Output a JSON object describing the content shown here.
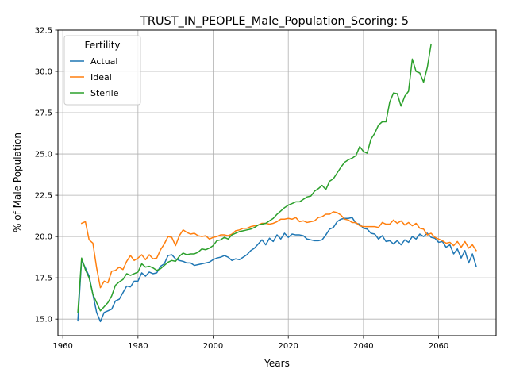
{
  "chart_data": {
    "type": "line",
    "title": "TRUST_IN_PEOPLE_Male_Population_Scoring: 5",
    "xlabel": "Years",
    "ylabel": "% of Male Population",
    "xlim": [
      1958.7,
      2075.3
    ],
    "ylim": [
      14.0,
      32.5
    ],
    "x_ticks": [
      1960,
      1980,
      2000,
      2020,
      2040,
      2060
    ],
    "x_tick_labels": [
      "1960",
      "1980",
      "2000",
      "2020",
      "2040",
      "2060"
    ],
    "y_ticks": [
      15.0,
      17.5,
      20.0,
      22.5,
      25.0,
      27.5,
      30.0,
      32.5
    ],
    "y_tick_labels": [
      "15.0",
      "17.5",
      "20.0",
      "22.5",
      "25.0",
      "27.5",
      "30.0",
      "32.5"
    ],
    "grid": true,
    "legend": {
      "title": "Fertility",
      "placement": "upper-left"
    },
    "series": [
      {
        "name": "Actual",
        "color": "#1f77b4",
        "x": [
          1964,
          1965,
          1966,
          1967,
          1968,
          1969,
          1970,
          1971,
          1972,
          1973,
          1974,
          1975,
          1976,
          1977,
          1978,
          1979,
          1980,
          1981,
          1982,
          1983,
          1984,
          1985,
          1986,
          1987,
          1988,
          1989,
          1990,
          1991,
          1992,
          1993,
          1994,
          1995,
          1996,
          1997,
          1998,
          1999,
          2000,
          2001,
          2002,
          2003,
          2004,
          2005,
          2006,
          2007,
          2008,
          2009,
          2010,
          2011,
          2012,
          2013,
          2014,
          2015,
          2016,
          2017,
          2018,
          2019,
          2020,
          2021,
          2022,
          2023,
          2024,
          2025,
          2026,
          2027,
          2028,
          2029,
          2030,
          2031,
          2032,
          2033,
          2034,
          2035,
          2036,
          2037,
          2038,
          2039,
          2040,
          2041,
          2042,
          2043,
          2044,
          2045,
          2046,
          2047,
          2048,
          2049,
          2050,
          2051,
          2052,
          2053,
          2054,
          2055,
          2056,
          2057,
          2058,
          2059,
          2060,
          2061,
          2062,
          2063,
          2064,
          2065,
          2066,
          2067,
          2068,
          2069,
          2070
        ],
        "values": [
          14.9,
          18.6,
          18.1,
          17.6,
          16.5,
          15.4,
          14.85,
          15.4,
          15.5,
          15.6,
          16.1,
          16.2,
          16.6,
          17.0,
          16.95,
          17.3,
          17.3,
          17.8,
          17.6,
          17.85,
          17.75,
          17.8,
          18.2,
          18.35,
          18.85,
          18.9,
          18.65,
          18.55,
          18.5,
          18.4,
          18.4,
          18.25,
          18.3,
          18.35,
          18.4,
          18.45,
          18.6,
          18.7,
          18.75,
          18.85,
          18.75,
          18.55,
          18.65,
          18.6,
          18.75,
          18.9,
          19.15,
          19.3,
          19.55,
          19.8,
          19.5,
          19.9,
          19.7,
          20.1,
          19.85,
          20.2,
          19.95,
          20.15,
          20.1,
          20.1,
          20.05,
          19.85,
          19.8,
          19.75,
          19.75,
          19.8,
          20.1,
          20.45,
          20.55,
          20.9,
          21.05,
          21.1,
          21.1,
          21.15,
          20.8,
          20.75,
          20.5,
          20.45,
          20.2,
          20.15,
          19.85,
          20.05,
          19.7,
          19.75,
          19.55,
          19.75,
          19.5,
          19.8,
          19.65,
          20.0,
          19.85,
          20.15,
          20.0,
          20.2,
          19.95,
          19.9,
          19.65,
          19.7,
          19.35,
          19.5,
          18.95,
          19.25,
          18.7,
          19.15,
          18.4,
          18.95,
          18.2
        ]
      },
      {
        "name": "Ideal",
        "color": "#ff7f0e",
        "x": [
          1965,
          1966,
          1967,
          1968,
          1969,
          1970,
          1971,
          1972,
          1973,
          1974,
          1975,
          1976,
          1977,
          1978,
          1979,
          1980,
          1981,
          1982,
          1983,
          1984,
          1985,
          1986,
          1987,
          1988,
          1989,
          1990,
          1991,
          1992,
          1993,
          1994,
          1995,
          1996,
          1997,
          1998,
          1999,
          2000,
          2001,
          2002,
          2003,
          2004,
          2005,
          2006,
          2007,
          2008,
          2009,
          2010,
          2011,
          2012,
          2013,
          2014,
          2015,
          2016,
          2017,
          2018,
          2019,
          2020,
          2021,
          2022,
          2023,
          2024,
          2025,
          2026,
          2027,
          2028,
          2029,
          2030,
          2031,
          2032,
          2033,
          2034,
          2035,
          2036,
          2037,
          2038,
          2039,
          2040,
          2041,
          2042,
          2043,
          2044,
          2045,
          2046,
          2047,
          2048,
          2049,
          2050,
          2051,
          2052,
          2053,
          2054,
          2055,
          2056,
          2057,
          2058,
          2059,
          2060,
          2061,
          2062,
          2063,
          2064,
          2065,
          2066,
          2067,
          2068,
          2069,
          2070
        ],
        "values": [
          20.8,
          20.9,
          19.8,
          19.6,
          18.1,
          16.9,
          17.3,
          17.2,
          17.9,
          17.95,
          18.15,
          18.0,
          18.5,
          18.85,
          18.55,
          18.7,
          18.9,
          18.6,
          18.9,
          18.65,
          18.7,
          19.2,
          19.55,
          20.0,
          19.95,
          19.45,
          20.05,
          20.4,
          20.25,
          20.15,
          20.2,
          20.05,
          20.0,
          20.05,
          19.85,
          19.95,
          20.0,
          20.1,
          20.1,
          20.05,
          20.15,
          20.35,
          20.4,
          20.5,
          20.5,
          20.6,
          20.65,
          20.7,
          20.8,
          20.8,
          20.75,
          20.8,
          20.9,
          21.05,
          21.05,
          21.1,
          21.05,
          21.15,
          20.9,
          20.95,
          20.85,
          20.9,
          20.95,
          21.15,
          21.2,
          21.35,
          21.35,
          21.5,
          21.45,
          21.3,
          21.05,
          21.0,
          20.85,
          20.85,
          20.65,
          20.6,
          20.6,
          20.6,
          20.6,
          20.55,
          20.85,
          20.75,
          20.75,
          21.0,
          20.8,
          20.95,
          20.7,
          20.85,
          20.65,
          20.8,
          20.5,
          20.45,
          20.1,
          20.2,
          19.95,
          19.85,
          19.75,
          19.6,
          19.65,
          19.45,
          19.7,
          19.35,
          19.7,
          19.3,
          19.5,
          19.15
        ]
      },
      {
        "name": "Sterile",
        "color": "#2ca02c",
        "x": [
          1964,
          1965,
          1966,
          1967,
          1968,
          1969,
          1970,
          1971,
          1972,
          1973,
          1974,
          1975,
          1976,
          1977,
          1978,
          1979,
          1980,
          1981,
          1982,
          1983,
          1984,
          1985,
          1986,
          1987,
          1988,
          1989,
          1990,
          1991,
          1992,
          1993,
          1994,
          1995,
          1996,
          1997,
          1998,
          1999,
          2000,
          2001,
          2002,
          2003,
          2004,
          2005,
          2006,
          2007,
          2008,
          2009,
          2010,
          2011,
          2012,
          2013,
          2014,
          2015,
          2016,
          2017,
          2018,
          2019,
          2020,
          2021,
          2022,
          2023,
          2024,
          2025,
          2026,
          2027,
          2028,
          2029,
          2030,
          2031,
          2032,
          2033,
          2034,
          2035,
          2036,
          2037,
          2038,
          2039,
          2040,
          2041,
          2042,
          2043,
          2044,
          2045,
          2046,
          2047,
          2048,
          2049,
          2050,
          2051,
          2052,
          2053,
          2054,
          2055,
          2056,
          2057,
          2058
        ],
        "values": [
          15.4,
          18.7,
          18.0,
          17.5,
          16.5,
          16.0,
          15.5,
          15.75,
          16.0,
          16.4,
          17.05,
          17.25,
          17.4,
          17.75,
          17.65,
          17.75,
          17.85,
          18.35,
          18.15,
          18.2,
          18.1,
          17.95,
          18.05,
          18.25,
          18.45,
          18.55,
          18.5,
          18.8,
          19.0,
          18.9,
          18.95,
          18.95,
          19.05,
          19.25,
          19.2,
          19.3,
          19.45,
          19.75,
          19.8,
          19.95,
          19.85,
          20.1,
          20.2,
          20.3,
          20.35,
          20.4,
          20.45,
          20.55,
          20.7,
          20.75,
          20.8,
          20.95,
          21.1,
          21.35,
          21.55,
          21.75,
          21.9,
          22.0,
          22.1,
          22.1,
          22.25,
          22.4,
          22.45,
          22.75,
          22.9,
          23.1,
          22.85,
          23.35,
          23.5,
          23.85,
          24.2,
          24.5,
          24.65,
          24.75,
          24.9,
          25.45,
          25.15,
          25.05,
          25.9,
          26.25,
          26.75,
          26.95,
          26.95,
          28.15,
          28.7,
          28.65,
          27.9,
          28.5,
          28.8,
          30.75,
          30.0,
          29.9,
          29.35,
          30.25,
          31.65
        ]
      }
    ]
  }
}
